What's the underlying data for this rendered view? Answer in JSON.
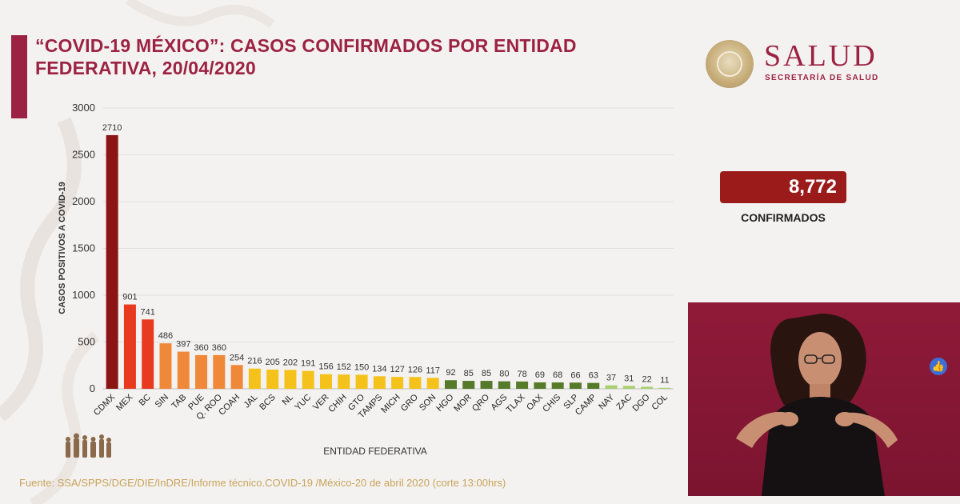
{
  "header": {
    "title_line1": "“COVID-19 MÉXICO”: CASOS CONFIRMADOS POR ENTIDAD",
    "title_line2": "FEDERATIVA, 20/04/2020"
  },
  "logo": {
    "brand": "SALUD",
    "subtitle": "SECRETARÍA DE SALUD",
    "seal_icon": "national-seal-icon"
  },
  "kpi": {
    "value": "8,772",
    "label": "CONFIRMADOS"
  },
  "footer": {
    "source": "Fuente: SSA/SPPS/DGE/DIE/InDRE/Informe técnico.COVID-19 /México-20 de abril 2020 (corte 13:00hrs)"
  },
  "colors": {
    "accent": "#9b2242",
    "dark_red": "#8b1414",
    "red": "#e83a1e",
    "orange": "#f0883a",
    "yellow": "#f5c21b",
    "dark_green": "#557a2a",
    "light_green": "#a8d06e",
    "kpi_bg": "#9b1b1b"
  },
  "chart_data": {
    "type": "bar",
    "title": "“COVID-19 MÉXICO”: CASOS CONFIRMADOS POR ENTIDAD FEDERATIVA, 20/04/2020",
    "xlabel": "ENTIDAD FEDERATIVA",
    "ylabel": "CASOS POSITIVOS A COVID-19",
    "ylim": [
      0,
      3000
    ],
    "yticks": [
      0,
      500,
      1000,
      1500,
      2000,
      2500,
      3000
    ],
    "grid": true,
    "categories": [
      "CDMX",
      "MEX",
      "BC",
      "SIN",
      "TAB",
      "PUE",
      "Q. ROO",
      "COAH",
      "JAL",
      "BCS",
      "NL",
      "YUC",
      "VER",
      "CHIH",
      "GTO",
      "TAMPS",
      "MICH",
      "GRO",
      "SON",
      "HGO",
      "MOR",
      "QRO",
      "AGS",
      "TLAX",
      "OAX",
      "CHIS",
      "SLP",
      "CAMP",
      "NAY",
      "ZAC",
      "DGO",
      "COL"
    ],
    "values": [
      2710,
      901,
      741,
      486,
      397,
      360,
      360,
      254,
      216,
      205,
      202,
      191,
      156,
      152,
      150,
      134,
      127,
      126,
      117,
      92,
      85,
      85,
      80,
      78,
      69,
      68,
      66,
      63,
      37,
      31,
      22,
      11
    ],
    "bar_color_groups": [
      "dark_red",
      "red",
      "red",
      "orange",
      "orange",
      "orange",
      "orange",
      "orange",
      "yellow",
      "yellow",
      "yellow",
      "yellow",
      "yellow",
      "yellow",
      "yellow",
      "yellow",
      "yellow",
      "yellow",
      "yellow",
      "dark_green",
      "dark_green",
      "dark_green",
      "dark_green",
      "dark_green",
      "dark_green",
      "dark_green",
      "dark_green",
      "dark_green",
      "light_green",
      "light_green",
      "light_green",
      "light_green"
    ]
  }
}
